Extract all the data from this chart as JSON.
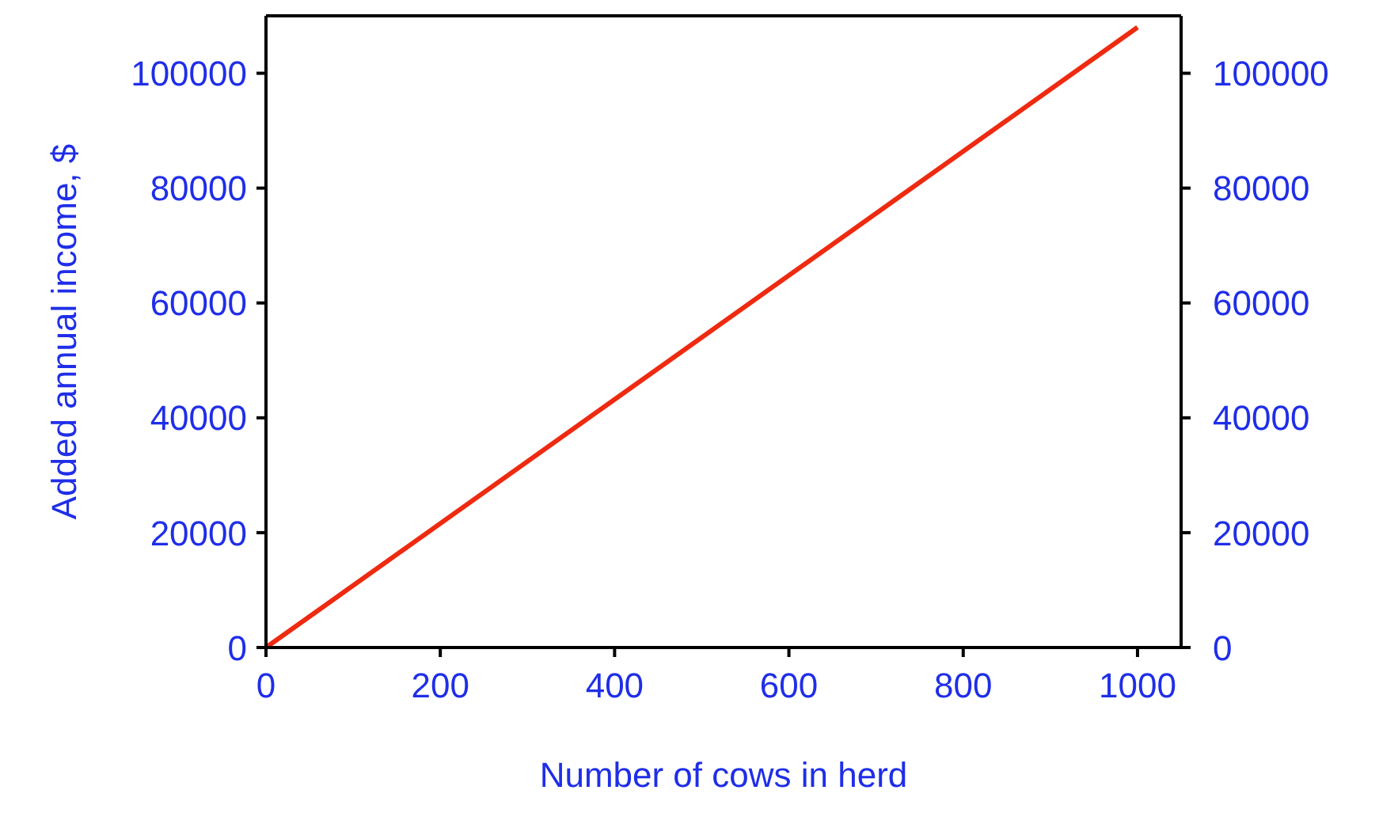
{
  "chart_data": {
    "type": "line",
    "xlabel": "Number of cows in herd",
    "ylabel": "Added annual income, $",
    "x": [
      0,
      1000
    ],
    "series": [
      {
        "color": "#ee2a10",
        "values": [
          0,
          108000
        ]
      }
    ],
    "xlim": [
      0,
      1050
    ],
    "xticks": [
      0,
      200,
      400,
      600,
      800,
      1000
    ],
    "ylim": [
      0,
      110000
    ],
    "yticks": [
      0,
      20000,
      40000,
      60000,
      80000,
      100000
    ],
    "y2lim": [
      0,
      110000
    ],
    "y2ticks": [
      0,
      20000,
      40000,
      60000,
      80000,
      100000
    ],
    "grid": false,
    "marker": "none",
    "line_style": "solid"
  }
}
